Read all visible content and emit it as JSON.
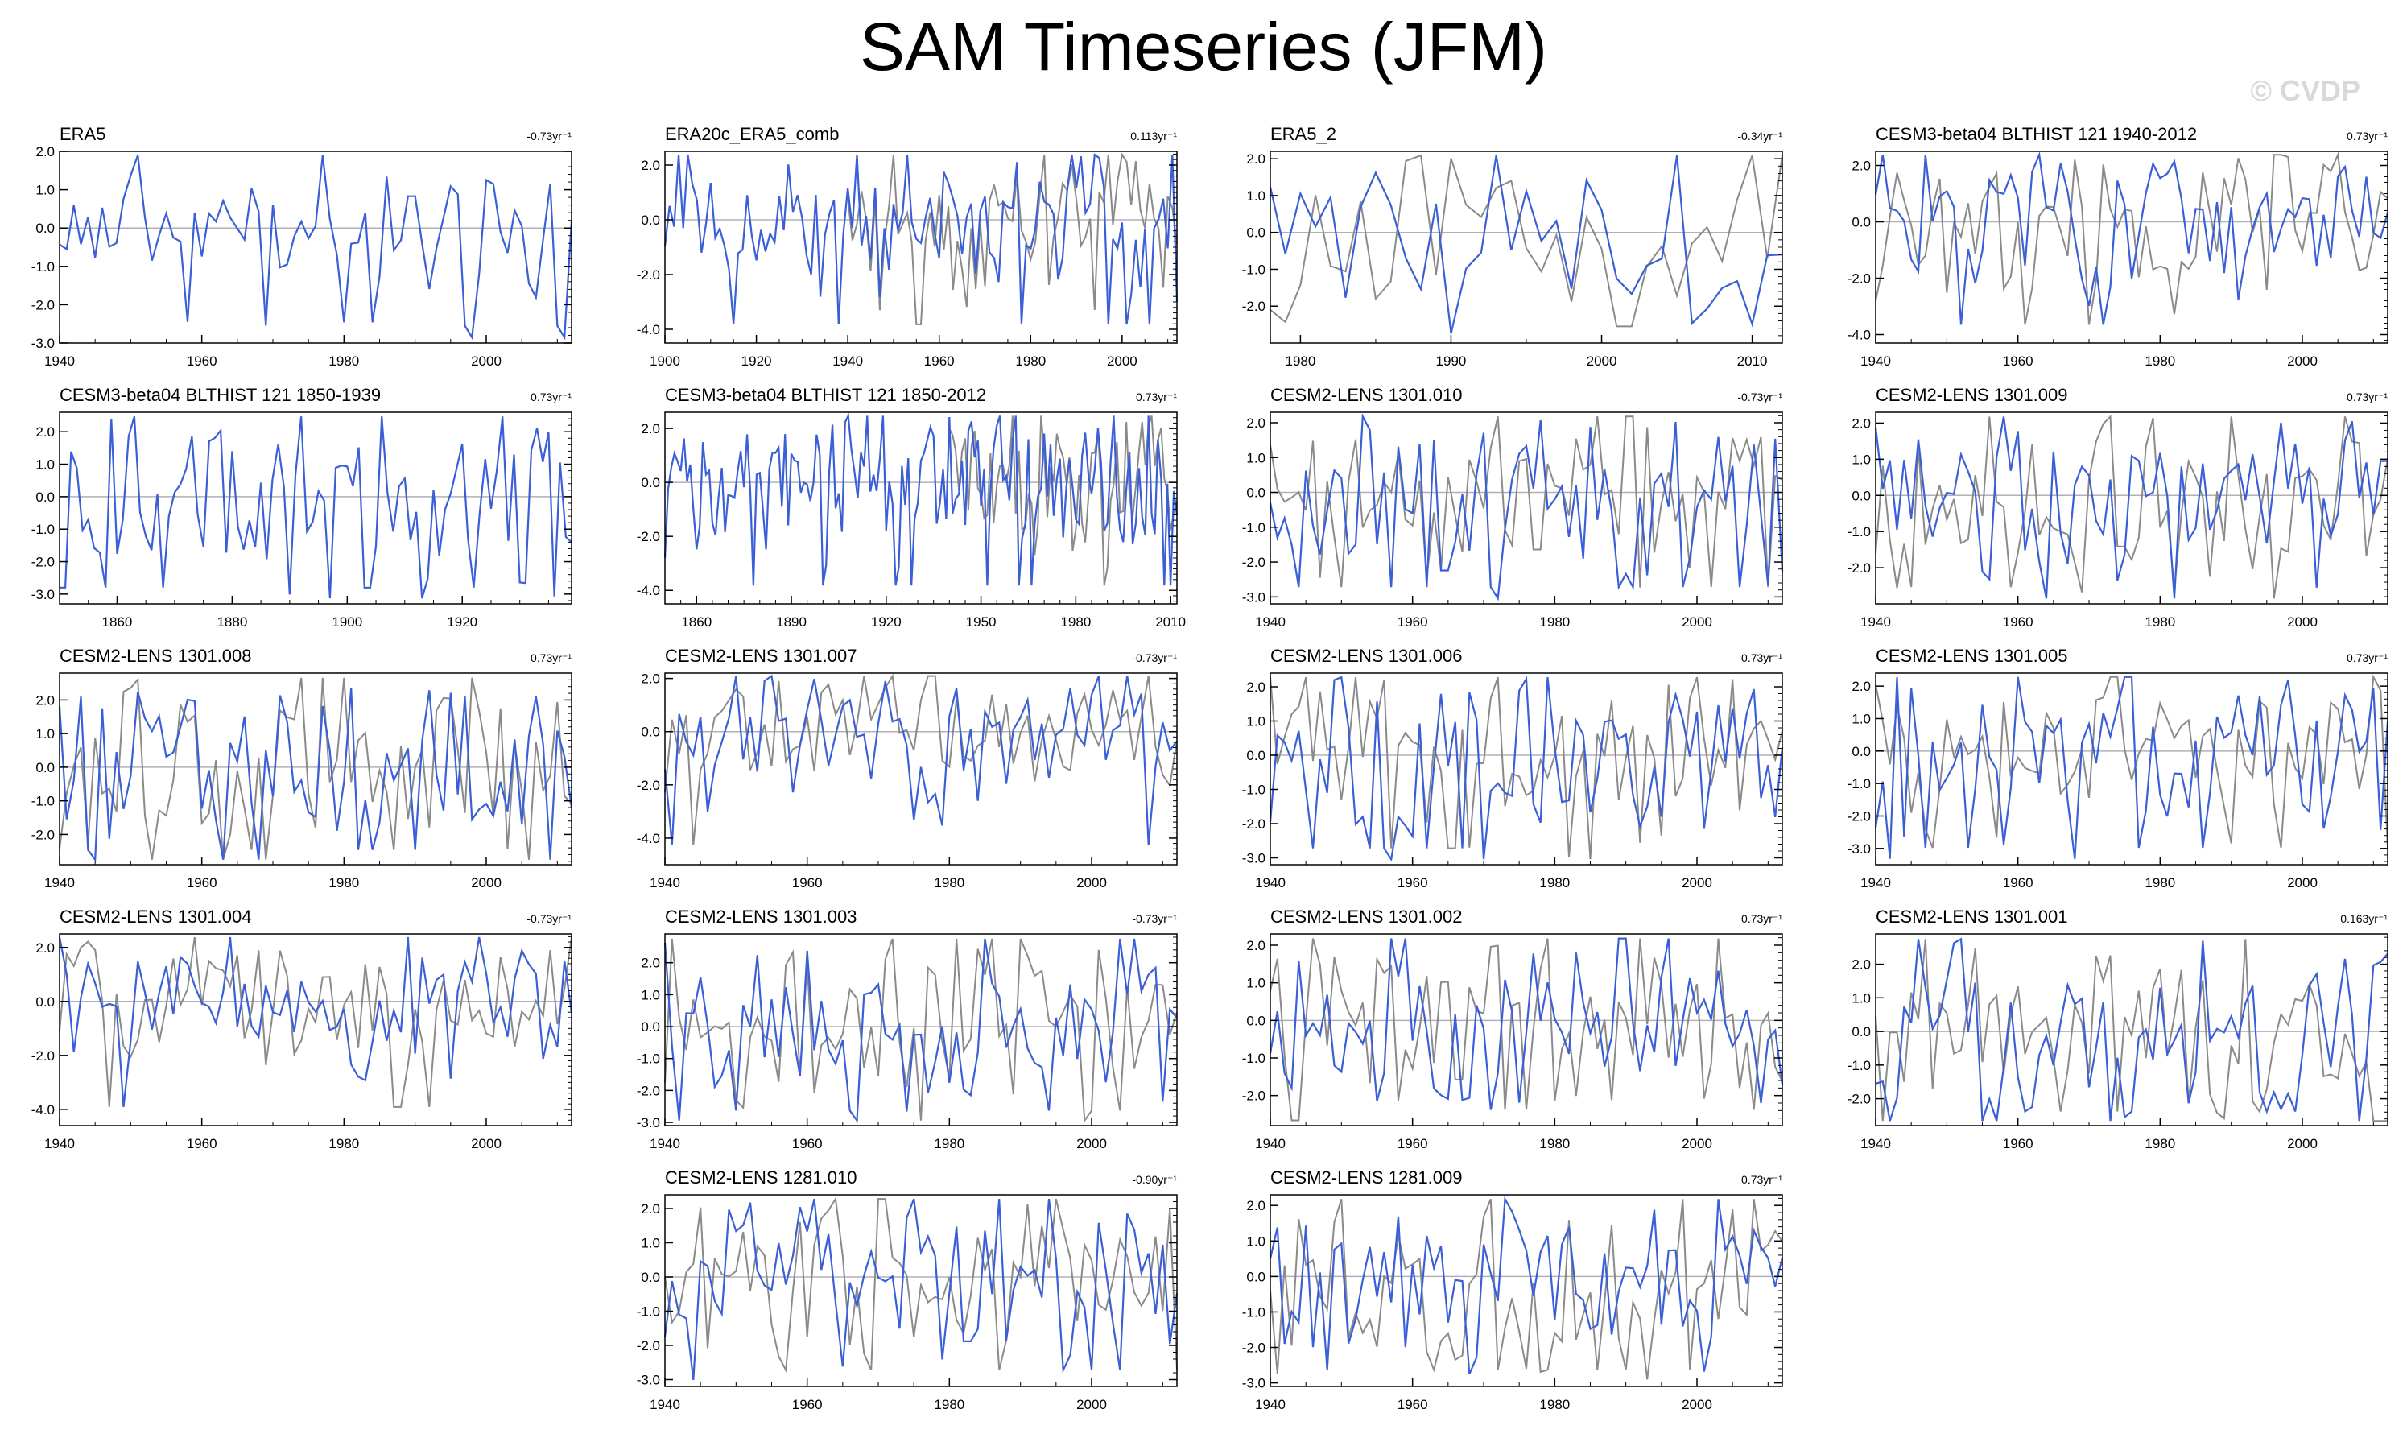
{
  "title": "SAM Timeseries (JFM)",
  "watermark": "© CVDP",
  "colors": {
    "model": "#3a5fd6",
    "observed": "#8a8a8a",
    "zero_line": "#b0b0b8",
    "axis": "#000000"
  },
  "chart_data": [
    {
      "type": "line",
      "title": "ERA5",
      "trend": "-0.73yr⁻¹",
      "xlim": [
        1940,
        2012
      ],
      "ylim": [
        -3,
        2
      ],
      "yticks": [
        2,
        1,
        0,
        -1,
        -2,
        -3
      ],
      "ytick_labels": [
        "2.0",
        "1.0",
        "0.0",
        "-1.0",
        "-2.0",
        "-3.0"
      ],
      "xticks": [
        1940,
        1960,
        1980,
        2000
      ],
      "obs": false,
      "seed": 11
    },
    {
      "type": "line",
      "title": "ERA20c_ERA5_comb",
      "trend": "0.113yr⁻¹",
      "xlim": [
        1900,
        2012
      ],
      "ylim": [
        -4.5,
        2.5
      ],
      "yticks": [
        2,
        0,
        -2,
        -4
      ],
      "ytick_labels": [
        "2.0",
        "0.0",
        "-2.0",
        "-4.0"
      ],
      "xticks": [
        1900,
        1920,
        1940,
        1960,
        1980,
        2000
      ],
      "obs": true,
      "obs_from": 1940,
      "seed": 12
    },
    {
      "type": "line",
      "title": "ERA5_2",
      "trend": "-0.34yr⁻¹",
      "xlim": [
        1978,
        2012
      ],
      "ylim": [
        -3,
        2.2
      ],
      "yticks": [
        2,
        1,
        0,
        -1,
        -2
      ],
      "ytick_labels": [
        "2.0",
        "1.0",
        "0.0",
        "-1.0",
        "-2.0"
      ],
      "xticks": [
        1980,
        1990,
        2000,
        2010
      ],
      "obs": true,
      "obs_from": 1978,
      "seed": 13
    },
    {
      "type": "line",
      "title": "CESM3-beta04 BLTHIST 121 1940-2012",
      "trend": "0.73yr⁻¹",
      "xlim": [
        1940,
        2012
      ],
      "ylim": [
        -4.3,
        2.5
      ],
      "yticks": [
        2,
        0,
        -2,
        -4
      ],
      "ytick_labels": [
        "2.0",
        "0.0",
        "-2.0",
        "-4.0"
      ],
      "xticks": [
        1940,
        1960,
        1980,
        2000
      ],
      "obs": true,
      "obs_from": 1940,
      "seed": 14
    },
    {
      "type": "line",
      "title": "CESM3-beta04 BLTHIST 121 1850-1939",
      "trend": "0.73yr⁻¹",
      "xlim": [
        1850,
        1939
      ],
      "ylim": [
        -3.3,
        2.6
      ],
      "yticks": [
        2,
        1,
        0,
        -1,
        -2,
        -3
      ],
      "ytick_labels": [
        "2.0",
        "1.0",
        "0.0",
        "-1.0",
        "-2.0",
        "-3.0"
      ],
      "xticks": [
        1860,
        1880,
        1900,
        1920
      ],
      "obs": false,
      "seed": 15
    },
    {
      "type": "line",
      "title": "CESM3-beta04 BLTHIST 121 1850-2012",
      "trend": "0.73yr⁻¹",
      "xlim": [
        1850,
        2012
      ],
      "ylim": [
        -4.5,
        2.6
      ],
      "yticks": [
        2,
        0,
        -2,
        -4
      ],
      "ytick_labels": [
        "2.0",
        "0.0",
        "-2.0",
        "-4.0"
      ],
      "xticks": [
        1860,
        1890,
        1920,
        1950,
        1980,
        2010
      ],
      "obs": true,
      "obs_from": 1940,
      "seed": 16
    },
    {
      "type": "line",
      "title": "CESM2-LENS 1301.010",
      "trend": "-0.73yr⁻¹",
      "xlim": [
        1940,
        2012
      ],
      "ylim": [
        -3.2,
        2.3
      ],
      "yticks": [
        2,
        1,
        0,
        -1,
        -2,
        -3
      ],
      "ytick_labels": [
        "2.0",
        "1.0",
        "0.0",
        "-1.0",
        "-2.0",
        "-3.0"
      ],
      "xticks": [
        1940,
        1960,
        1980,
        2000
      ],
      "obs": true,
      "obs_from": 1940,
      "seed": 17
    },
    {
      "type": "line",
      "title": "CESM2-LENS 1301.009",
      "trend": "0.73yr⁻¹",
      "xlim": [
        1940,
        2012
      ],
      "ylim": [
        -3,
        2.3
      ],
      "yticks": [
        2,
        1,
        0,
        -1,
        -2
      ],
      "ytick_labels": [
        "2.0",
        "1.0",
        "0.0",
        "-1.0",
        "-2.0"
      ],
      "xticks": [
        1940,
        1960,
        1980,
        2000
      ],
      "obs": true,
      "obs_from": 1940,
      "seed": 18
    },
    {
      "type": "line",
      "title": "CESM2-LENS 1301.008",
      "trend": "0.73yr⁻¹",
      "xlim": [
        1940,
        2012
      ],
      "ylim": [
        -2.9,
        2.8
      ],
      "yticks": [
        2,
        1,
        0,
        -1,
        -2
      ],
      "ytick_labels": [
        "2.0",
        "1.0",
        "0.0",
        "-1.0",
        "-2.0"
      ],
      "xticks": [
        1940,
        1960,
        1980,
        2000
      ],
      "obs": true,
      "obs_from": 1940,
      "seed": 19
    },
    {
      "type": "line",
      "title": "CESM2-LENS 1301.007",
      "trend": "-0.73yr⁻¹",
      "xlim": [
        1940,
        2012
      ],
      "ylim": [
        -5,
        2.2
      ],
      "yticks": [
        2,
        0,
        -2,
        -4
      ],
      "ytick_labels": [
        "2.0",
        "0.0",
        "-2.0",
        "-4.0"
      ],
      "xticks": [
        1940,
        1960,
        1980,
        2000
      ],
      "obs": true,
      "obs_from": 1940,
      "seed": 20
    },
    {
      "type": "line",
      "title": "CESM2-LENS 1301.006",
      "trend": "0.73yr⁻¹",
      "xlim": [
        1940,
        2012
      ],
      "ylim": [
        -3.2,
        2.4
      ],
      "yticks": [
        2,
        1,
        0,
        -1,
        -2,
        -3
      ],
      "ytick_labels": [
        "2.0",
        "1.0",
        "0.0",
        "-1.0",
        "-2.0",
        "-3.0"
      ],
      "xticks": [
        1940,
        1960,
        1980,
        2000
      ],
      "obs": true,
      "obs_from": 1940,
      "seed": 21
    },
    {
      "type": "line",
      "title": "CESM2-LENS 1301.005",
      "trend": "0.73yr⁻¹",
      "xlim": [
        1940,
        2012
      ],
      "ylim": [
        -3.5,
        2.4
      ],
      "yticks": [
        2,
        1,
        0,
        -1,
        -2,
        -3
      ],
      "ytick_labels": [
        "2.0",
        "1.0",
        "0.0",
        "-1.0",
        "-2.0",
        "-3.0"
      ],
      "xticks": [
        1940,
        1960,
        1980,
        2000
      ],
      "obs": true,
      "obs_from": 1940,
      "seed": 22
    },
    {
      "type": "line",
      "title": "CESM2-LENS 1301.004",
      "trend": "-0.73yr⁻¹",
      "xlim": [
        1940,
        2012
      ],
      "ylim": [
        -4.6,
        2.5
      ],
      "yticks": [
        2,
        0,
        -2,
        -4
      ],
      "ytick_labels": [
        "2.0",
        "0.0",
        "-2.0",
        "-4.0"
      ],
      "xticks": [
        1940,
        1960,
        1980,
        2000
      ],
      "obs": true,
      "obs_from": 1940,
      "seed": 23
    },
    {
      "type": "line",
      "title": "CESM2-LENS 1301.003",
      "trend": "-0.73yr⁻¹",
      "xlim": [
        1940,
        2012
      ],
      "ylim": [
        -3.1,
        2.9
      ],
      "yticks": [
        2,
        1,
        0,
        -1,
        -2,
        -3
      ],
      "ytick_labels": [
        "2.0",
        "1.0",
        "0.0",
        "-1.0",
        "-2.0",
        "-3.0"
      ],
      "xticks": [
        1940,
        1960,
        1980,
        2000
      ],
      "obs": true,
      "obs_from": 1940,
      "seed": 24
    },
    {
      "type": "line",
      "title": "CESM2-LENS 1301.002",
      "trend": "0.73yr⁻¹",
      "xlim": [
        1940,
        2012
      ],
      "ylim": [
        -2.8,
        2.3
      ],
      "yticks": [
        2,
        1,
        0,
        -1,
        -2
      ],
      "ytick_labels": [
        "2.0",
        "1.0",
        "0.0",
        "-1.0",
        "-2.0"
      ],
      "xticks": [
        1940,
        1960,
        1980,
        2000
      ],
      "obs": true,
      "obs_from": 1940,
      "seed": 25
    },
    {
      "type": "line",
      "title": "CESM2-LENS 1301.001",
      "trend": "0.163yr⁻¹",
      "xlim": [
        1940,
        2012
      ],
      "ylim": [
        -2.8,
        2.9
      ],
      "yticks": [
        2,
        1,
        0,
        -1,
        -2
      ],
      "ytick_labels": [
        "2.0",
        "1.0",
        "0.0",
        "-1.0",
        "-2.0"
      ],
      "xticks": [
        1940,
        1960,
        1980,
        2000
      ],
      "obs": true,
      "obs_from": 1940,
      "seed": 26
    },
    {
      "type": "line",
      "title": "CESM2-LENS 1281.010",
      "trend": "-0.90yr⁻¹",
      "xlim": [
        1940,
        2012
      ],
      "ylim": [
        -3.2,
        2.4
      ],
      "yticks": [
        2,
        1,
        0,
        -1,
        -2,
        -3
      ],
      "ytick_labels": [
        "2.0",
        "1.0",
        "0.0",
        "-1.0",
        "-2.0",
        "-3.0"
      ],
      "xticks": [
        1940,
        1960,
        1980,
        2000
      ],
      "obs": true,
      "obs_from": 1940,
      "seed": 27
    },
    {
      "type": "line",
      "title": "CESM2-LENS 1281.009",
      "trend": "0.73yr⁻¹",
      "xlim": [
        1940,
        2012
      ],
      "ylim": [
        -3.1,
        2.3
      ],
      "yticks": [
        2,
        1,
        0,
        -1,
        -2,
        -3
      ],
      "ytick_labels": [
        "2.0",
        "1.0",
        "0.0",
        "-1.0",
        "-2.0",
        "-3.0"
      ],
      "xticks": [
        1940,
        1960,
        1980,
        2000
      ],
      "obs": true,
      "obs_from": 1940,
      "seed": 28
    }
  ]
}
